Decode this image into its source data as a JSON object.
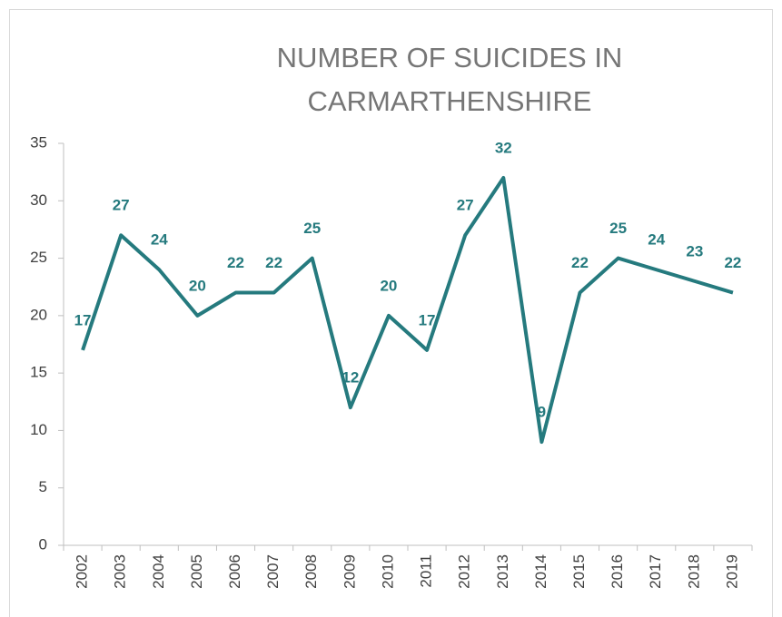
{
  "chart_data": {
    "type": "line",
    "title": "NUMBER OF SUICIDES IN CARMARTHENSHIRE",
    "categories": [
      "2002",
      "2003",
      "2004",
      "2005",
      "2006",
      "2007",
      "2008",
      "2009",
      "2010",
      "2011",
      "2012",
      "2013",
      "2014",
      "2015",
      "2016",
      "2017",
      "2018",
      "2019"
    ],
    "values": [
      17,
      27,
      24,
      20,
      22,
      22,
      25,
      12,
      20,
      17,
      27,
      32,
      9,
      22,
      25,
      24,
      23,
      22
    ],
    "color": "#257a7e",
    "ylim": [
      0,
      35
    ],
    "yticks": [
      0,
      5,
      10,
      15,
      20,
      25,
      30,
      35
    ],
    "grid": false
  }
}
